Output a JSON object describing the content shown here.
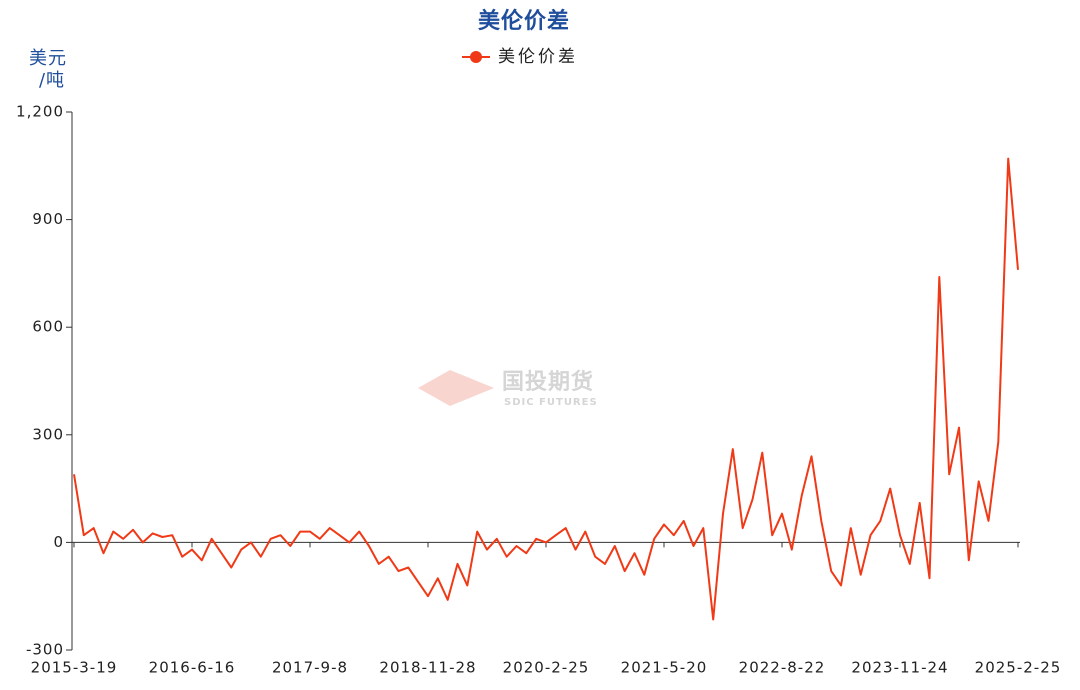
{
  "chart_data": {
    "type": "line",
    "title": "美伦价差",
    "y_label": [
      "美元",
      "/吨"
    ],
    "watermark": {
      "name": "国投期货",
      "subtitle": "SDIC FUTURES"
    },
    "categories": [
      "2015-3-19",
      null,
      null,
      null,
      null,
      null,
      null,
      null,
      null,
      null,
      null,
      null,
      "2016-6-16",
      null,
      null,
      null,
      null,
      null,
      null,
      null,
      null,
      null,
      null,
      null,
      "2017-9-8",
      null,
      null,
      null,
      null,
      null,
      null,
      null,
      null,
      null,
      null,
      null,
      "2018-11-28",
      null,
      null,
      null,
      null,
      null,
      null,
      null,
      null,
      null,
      null,
      null,
      "2020-2-25",
      null,
      null,
      null,
      null,
      null,
      null,
      null,
      null,
      null,
      null,
      null,
      "2021-5-20",
      null,
      null,
      null,
      null,
      null,
      null,
      null,
      null,
      null,
      null,
      null,
      "2022-8-22",
      null,
      null,
      null,
      null,
      null,
      null,
      null,
      null,
      null,
      null,
      null,
      "2023-11-24",
      null,
      null,
      null,
      null,
      null,
      null,
      null,
      null,
      null,
      null,
      null,
      "2025-2-25"
    ],
    "series": [
      {
        "name": "美伦价差",
        "color": "#f03a17",
        "values": [
          190,
          20,
          40,
          -30,
          30,
          10,
          35,
          0,
          25,
          15,
          20,
          -40,
          -20,
          -50,
          10,
          -30,
          -70,
          -20,
          0,
          -40,
          10,
          20,
          -10,
          30,
          30,
          10,
          40,
          20,
          0,
          30,
          -10,
          -60,
          -40,
          -80,
          -70,
          -110,
          -150,
          -100,
          -160,
          -60,
          -120,
          30,
          -20,
          10,
          -40,
          -10,
          -30,
          10,
          0,
          20,
          40,
          -20,
          30,
          -40,
          -60,
          -10,
          -80,
          -30,
          -90,
          10,
          50,
          20,
          60,
          -10,
          40,
          -215,
          80,
          260,
          40,
          120,
          250,
          20,
          80,
          -20,
          130,
          240,
          60,
          -80,
          -120,
          40,
          -90,
          20,
          60,
          150,
          20,
          -60,
          110,
          -100,
          740,
          190,
          320,
          -50,
          170,
          60,
          280,
          1070,
          760
        ]
      }
    ],
    "ylim": [
      -300,
      1200
    ],
    "yticks": [
      -300,
      0,
      300,
      600,
      {
        "value": 1200,
        "label": "1,200"
      },
      900
    ],
    "legend": "top"
  }
}
